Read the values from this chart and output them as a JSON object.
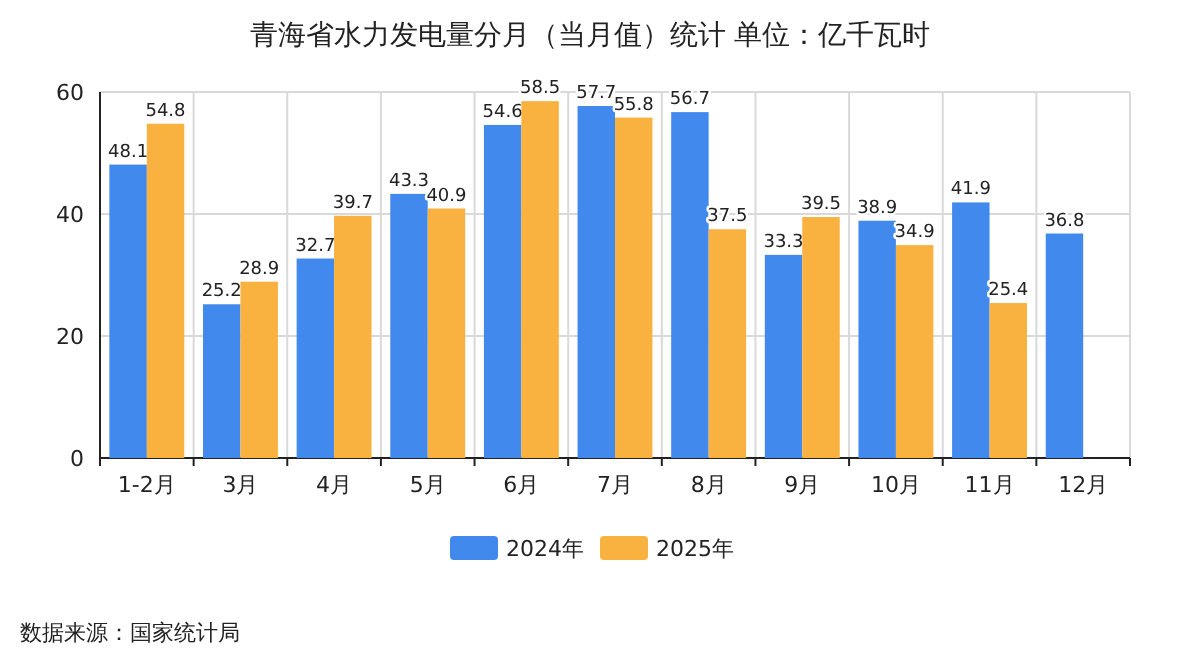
{
  "chart_data": {
    "type": "bar",
    "title": "青海省水力发电量分月（当月值）统计 单位：亿千瓦时",
    "categories": [
      "1-2月",
      "3月",
      "4月",
      "5月",
      "6月",
      "7月",
      "8月",
      "9月",
      "10月",
      "11月",
      "12月"
    ],
    "series": [
      {
        "name": "2024年",
        "color": "#4189ec",
        "values": [
          48.1,
          25.2,
          32.7,
          43.3,
          54.6,
          57.7,
          56.7,
          33.3,
          38.9,
          41.9,
          36.8
        ]
      },
      {
        "name": "2025年",
        "color": "#f9b13f",
        "values": [
          54.8,
          28.9,
          39.7,
          40.9,
          58.5,
          55.8,
          37.5,
          39.5,
          34.9,
          25.4,
          null
        ]
      }
    ],
    "ylim": [
      0,
      60
    ],
    "yticks": [
      0,
      20,
      40,
      60
    ],
    "grid": true,
    "legend": "bottom",
    "data_labels": true,
    "annotations": [
      "数据来源：国家统计局"
    ]
  }
}
